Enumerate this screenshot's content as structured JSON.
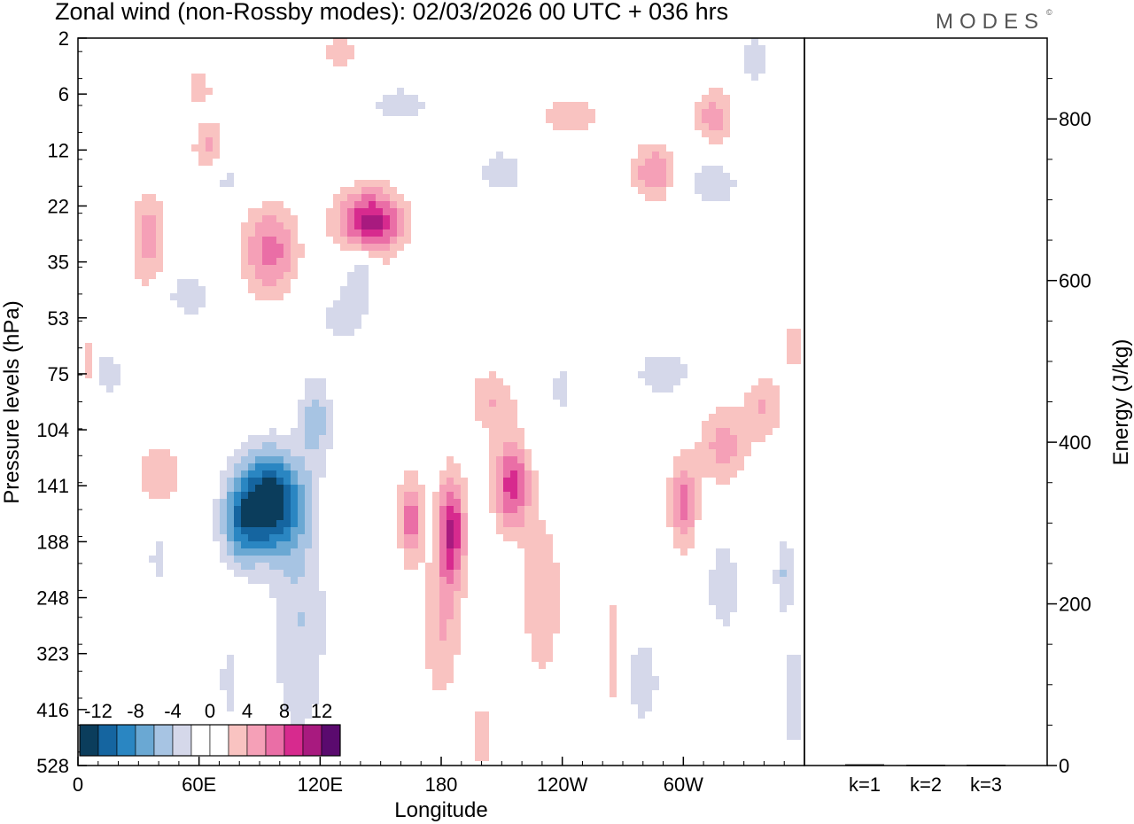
{
  "header": {
    "title": "Zonal wind (non-Rossby modes):  02/03/2026  00 UTC  + 036 hrs",
    "logo": "MODES",
    "logo_mark": "©"
  },
  "colors": {
    "background": "#ffffff",
    "frame": "#000000",
    "palette": [
      "#0b3d5c",
      "#1565a0",
      "#2a86c2",
      "#6aa8d3",
      "#a7c4e3",
      "#d5d8ea",
      "#ffffff",
      "#ffffff",
      "#f9c3c1",
      "#f5a0b7",
      "#ea6ea6",
      "#d72a8e",
      "#a81a7f",
      "#5a0a6e"
    ]
  },
  "chart_data": [
    {
      "type": "heatmap",
      "name": "hovmoller-longitude-pressure",
      "title": "Zonal wind (non-Rossby modes):  02/03/2026  00 UTC  + 036 hrs",
      "xlabel": "Longitude",
      "ylabel": "Pressure levels (hPa)",
      "x_ticks": [
        "0",
        "60E",
        "120E",
        "180",
        "120W",
        "60W"
      ],
      "x_tick_degrees": [
        0,
        60,
        120,
        180,
        240,
        300
      ],
      "xlim": [
        0,
        360
      ],
      "y_ticks": [
        "2",
        "6",
        "12",
        "22",
        "35",
        "53",
        "75",
        "104",
        "141",
        "188",
        "248",
        "323",
        "416",
        "528"
      ],
      "y_minor_ticks": 27,
      "colorbar": {
        "labels": [
          "-12",
          "-8",
          "-4",
          "0",
          "4",
          "8",
          "12"
        ],
        "levels": [
          -14,
          -12,
          -10,
          -8,
          -6,
          -4,
          -2,
          0,
          2,
          4,
          6,
          8,
          10,
          12,
          14
        ]
      },
      "blobs": [
        {
          "lon": 95,
          "lev": 8.3,
          "amp": -14,
          "wl": 16,
          "wv": 0.9
        },
        {
          "lon": 80,
          "lev": 8.7,
          "amp": -6,
          "wl": 10,
          "wv": 0.8
        },
        {
          "lon": 110,
          "lev": 10.5,
          "amp": -4,
          "wl": 14,
          "wv": 2.2
        },
        {
          "lon": 118,
          "lev": 6.8,
          "amp": -5,
          "wl": 8,
          "wv": 0.8
        },
        {
          "lon": 40,
          "lev": 9.3,
          "amp": -3,
          "wl": 5,
          "wv": 0.6
        },
        {
          "lon": 15,
          "lev": 6.0,
          "amp": -4,
          "wl": 7,
          "wv": 0.4
        },
        {
          "lon": 55,
          "lev": 4.6,
          "amp": -3,
          "wl": 14,
          "wv": 0.5
        },
        {
          "lon": 140,
          "lev": 4.2,
          "amp": -4,
          "wl": 8,
          "wv": 0.6
        },
        {
          "lon": 130,
          "lev": 5.0,
          "amp": -3,
          "wl": 12,
          "wv": 0.5
        },
        {
          "lon": 70,
          "lev": 2.5,
          "amp": -3,
          "wl": 14,
          "wv": 0.4
        },
        {
          "lon": 160,
          "lev": 1.2,
          "amp": -3,
          "wl": 18,
          "wv": 0.4
        },
        {
          "lon": 210,
          "lev": 2.4,
          "amp": -3,
          "wl": 14,
          "wv": 0.5
        },
        {
          "lon": 315,
          "lev": 2.6,
          "amp": -4,
          "wl": 12,
          "wv": 0.4
        },
        {
          "lon": 335,
          "lev": 0.4,
          "amp": -3,
          "wl": 8,
          "wv": 0.6
        },
        {
          "lon": 240,
          "lev": 6.3,
          "amp": -4,
          "wl": 4,
          "wv": 0.4
        },
        {
          "lon": 350,
          "lev": 9.6,
          "amp": -4,
          "wl": 5,
          "wv": 0.7
        },
        {
          "lon": 320,
          "lev": 9.8,
          "amp": -4,
          "wl": 8,
          "wv": 0.8
        },
        {
          "lon": 290,
          "lev": 6.0,
          "amp": -3,
          "wl": 18,
          "wv": 0.5
        },
        {
          "lon": 280,
          "lev": 11.5,
          "amp": -3,
          "wl": 10,
          "wv": 1.0
        },
        {
          "lon": 355,
          "lev": 11.8,
          "amp": -3,
          "wl": 6,
          "wv": 1.3
        },
        {
          "lon": 75,
          "lev": 11.5,
          "amp": -3,
          "wl": 5,
          "wv": 0.8
        },
        {
          "lon": 145,
          "lev": 3.3,
          "amp": 11,
          "wl": 16,
          "wv": 0.6
        },
        {
          "lon": 95,
          "lev": 3.8,
          "amp": 7,
          "wl": 14,
          "wv": 0.8
        },
        {
          "lon": 35,
          "lev": 3.6,
          "amp": 5,
          "wl": 9,
          "wv": 0.9
        },
        {
          "lon": 65,
          "lev": 2.0,
          "amp": 5,
          "wl": 8,
          "wv": 0.5
        },
        {
          "lon": 5,
          "lev": 5.8,
          "amp": 3,
          "wl": 5,
          "wv": 0.6
        },
        {
          "lon": 185,
          "lev": 8.8,
          "amp": 10,
          "wl": 7,
          "wv": 1.0
        },
        {
          "lon": 165,
          "lev": 8.6,
          "amp": 7,
          "wl": 6,
          "wv": 0.8
        },
        {
          "lon": 180,
          "lev": 10.6,
          "amp": 4,
          "wl": 10,
          "wv": 1.3
        },
        {
          "lon": 215,
          "lev": 8.0,
          "amp": 9,
          "wl": 9,
          "wv": 0.8
        },
        {
          "lon": 205,
          "lev": 6.5,
          "amp": 4,
          "wl": 12,
          "wv": 0.6
        },
        {
          "lon": 230,
          "lev": 10.0,
          "amp": 4,
          "wl": 10,
          "wv": 1.5
        },
        {
          "lon": 300,
          "lev": 8.3,
          "amp": 7,
          "wl": 7,
          "wv": 0.8
        },
        {
          "lon": 320,
          "lev": 7.3,
          "amp": 5,
          "wl": 12,
          "wv": 0.7
        },
        {
          "lon": 340,
          "lev": 6.6,
          "amp": 4,
          "wl": 10,
          "wv": 0.6
        },
        {
          "lon": 285,
          "lev": 2.4,
          "amp": 6,
          "wl": 10,
          "wv": 0.5
        },
        {
          "lon": 315,
          "lev": 1.4,
          "amp": 5,
          "wl": 10,
          "wv": 0.5
        },
        {
          "lon": 245,
          "lev": 1.4,
          "amp": 4,
          "wl": 16,
          "wv": 0.3
        },
        {
          "lon": 40,
          "lev": 7.8,
          "amp": 4,
          "wl": 12,
          "wv": 0.6
        },
        {
          "lon": 200,
          "lev": 12.5,
          "amp": 3,
          "wl": 6,
          "wv": 0.8
        },
        {
          "lon": 265,
          "lev": 11.0,
          "amp": 3,
          "wl": 5,
          "wv": 1.5
        },
        {
          "lon": 60,
          "lev": 0.9,
          "amp": 3,
          "wl": 8,
          "wv": 0.4
        },
        {
          "lon": 130,
          "lev": 0.3,
          "amp": 3,
          "wl": 10,
          "wv": 0.4
        },
        {
          "lon": 355,
          "lev": 5.5,
          "amp": 3,
          "wl": 5,
          "wv": 0.6
        }
      ]
    },
    {
      "type": "bar",
      "name": "energy-by-zonal-wavenumber",
      "categories": [
        "k=1",
        "k=2",
        "k=3"
      ],
      "values": [
        1.5,
        1.0,
        1.0
      ],
      "ylabel": "Energy (J/kg)",
      "ylim": [
        0,
        900
      ],
      "y_ticks": [
        "0",
        "200",
        "400",
        "600",
        "800"
      ],
      "y_tick_values": [
        0,
        200,
        400,
        600,
        800
      ],
      "y_minor_step": 50
    }
  ]
}
